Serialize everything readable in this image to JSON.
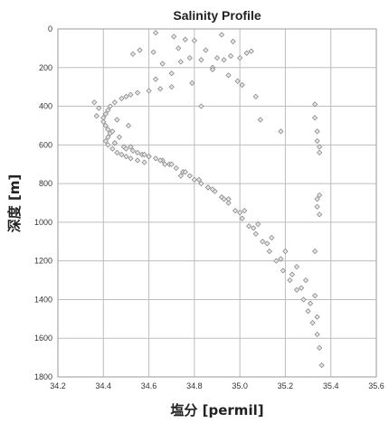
{
  "chart_data": {
    "type": "scatter",
    "title": "Salinity Profile",
    "xlabel": "塩分 [permil]",
    "ylabel": "深度 [m]",
    "xlim": [
      34.2,
      35.6
    ],
    "ylim": [
      1800,
      0
    ],
    "y_inverted": true,
    "x_ticks": [
      "34.2",
      "34.4",
      "34.6",
      "34.8",
      "35.0",
      "35.2",
      "35.4",
      "35.6"
    ],
    "y_ticks": [
      "0",
      "200",
      "400",
      "600",
      "800",
      "1000",
      "1200",
      "1400",
      "1600",
      "1800"
    ],
    "grid": true,
    "marker": "diamond",
    "marker_color": "#7d7d7d",
    "series": [
      {
        "x": [
          34.63,
          34.71,
          34.76,
          34.8,
          34.92,
          34.97,
          34.56,
          34.53,
          34.62,
          34.73,
          34.85,
          34.9,
          34.93,
          34.96,
          35.0,
          35.03,
          35.05,
          34.66,
          34.74,
          34.78,
          34.83,
          34.88,
          34.95,
          34.99,
          35.01,
          34.83,
          34.7,
          34.65,
          34.6,
          34.55,
          34.52,
          34.5,
          34.48,
          34.45,
          34.43,
          34.42,
          34.41,
          34.4,
          34.4,
          34.41,
          34.42,
          34.43,
          34.42,
          34.41,
          34.42,
          34.44,
          34.46,
          34.48,
          34.5,
          34.52,
          34.55,
          34.58,
          34.36,
          34.38,
          34.37,
          34.63,
          34.7,
          34.79,
          34.88,
          35.07,
          35.09,
          35.18,
          34.46,
          34.51,
          34.44,
          34.47,
          34.45,
          34.49,
          34.53,
          34.57,
          34.6,
          34.63,
          34.66,
          34.69,
          34.72,
          34.75,
          34.78,
          34.8,
          34.83,
          34.86,
          34.89,
          34.92,
          34.95,
          34.98,
          35.01,
          35.04,
          35.07,
          35.1,
          35.13,
          35.16,
          35.19,
          35.22,
          35.25,
          35.28,
          35.3,
          35.32,
          35.34,
          35.35,
          35.36,
          34.45,
          34.5,
          34.55,
          34.6,
          34.65,
          34.7,
          34.76,
          34.82,
          34.88,
          34.95,
          35.02,
          35.08,
          35.14,
          35.2,
          35.25,
          35.29,
          35.33,
          34.52,
          34.58,
          34.67,
          34.74,
          34.86,
          34.93,
          35.0,
          35.06,
          35.12,
          35.18,
          35.23,
          35.27,
          35.31,
          35.34,
          35.33,
          35.33,
          35.34,
          35.34,
          35.35,
          35.35,
          35.35,
          35.34,
          35.34,
          35.35,
          35.33
        ],
        "y": [
          20,
          40,
          55,
          60,
          30,
          65,
          110,
          130,
          120,
          100,
          110,
          150,
          160,
          140,
          150,
          125,
          115,
          180,
          170,
          150,
          160,
          200,
          240,
          270,
          290,
          400,
          300,
          310,
          320,
          330,
          340,
          350,
          360,
          380,
          400,
          420,
          440,
          460,
          480,
          500,
          520,
          540,
          560,
          580,
          600,
          620,
          640,
          650,
          660,
          670,
          680,
          690,
          380,
          410,
          450,
          260,
          230,
          280,
          210,
          350,
          470,
          530,
          470,
          500,
          530,
          560,
          590,
          610,
          630,
          650,
          660,
          670,
          680,
          700,
          720,
          740,
          760,
          780,
          800,
          820,
          840,
          870,
          900,
          940,
          980,
          1020,
          1060,
          1100,
          1150,
          1200,
          1250,
          1300,
          1350,
          1400,
          1460,
          1520,
          1580,
          1650,
          1740,
          590,
          620,
          640,
          660,
          680,
          700,
          740,
          780,
          830,
          880,
          940,
          1010,
          1080,
          1150,
          1230,
          1300,
          1380,
          610,
          650,
          700,
          760,
          820,
          880,
          950,
          1030,
          1110,
          1190,
          1270,
          1340,
          1420,
          1490,
          390,
          460,
          530,
          580,
          610,
          640,
          860,
          880,
          920,
          960,
          1150
        ]
      }
    ]
  }
}
